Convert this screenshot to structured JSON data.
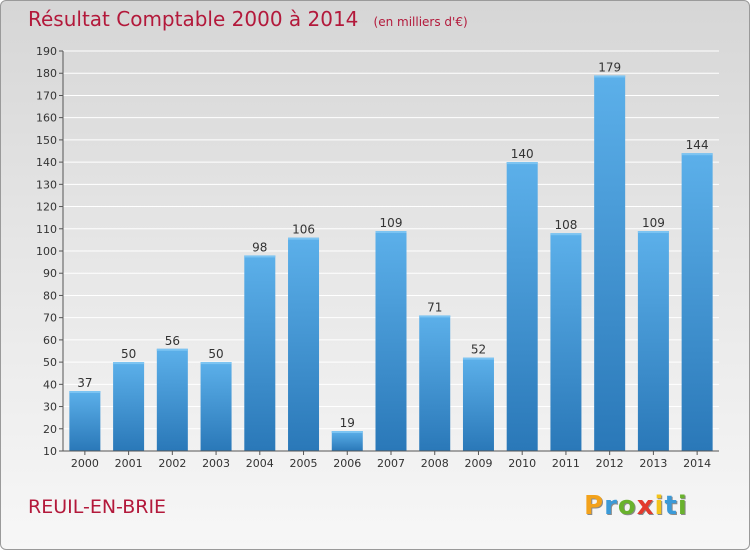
{
  "chart_data": {
    "type": "bar",
    "title": "Résultat Comptable 2000 à 2014",
    "subtitle": "(en milliers d'€)",
    "categories": [
      "2000",
      "2001",
      "2002",
      "2003",
      "2004",
      "2005",
      "2006",
      "2007",
      "2008",
      "2009",
      "2010",
      "2011",
      "2012",
      "2013",
      "2014"
    ],
    "values": [
      37,
      50,
      56,
      50,
      98,
      106,
      19,
      109,
      71,
      52,
      140,
      108,
      179,
      109,
      144
    ],
    "ylim": [
      10,
      190
    ],
    "yticks": [
      10,
      20,
      30,
      40,
      50,
      60,
      70,
      80,
      90,
      100,
      110,
      120,
      130,
      140,
      150,
      160,
      170,
      180,
      190
    ],
    "grid": true,
    "bar_color": "#3f95d6",
    "bar_color_light": "#5cb0ea",
    "bar_color_dark": "#2a78b8",
    "grid_color": "#ffffff",
    "axis_color": "#555555",
    "xlabel": "",
    "ylabel": ""
  },
  "footer": {
    "commune": "REUIL-EN-BRIE"
  },
  "logo": {
    "letters": [
      "P",
      "r",
      "o",
      "x",
      "i",
      "t",
      "i"
    ],
    "colors": [
      "#f3a21b",
      "#3b9ad8",
      "#69b22d",
      "#e33a2d",
      "#f3c41b",
      "#3b9ad8",
      "#69b22d"
    ]
  }
}
